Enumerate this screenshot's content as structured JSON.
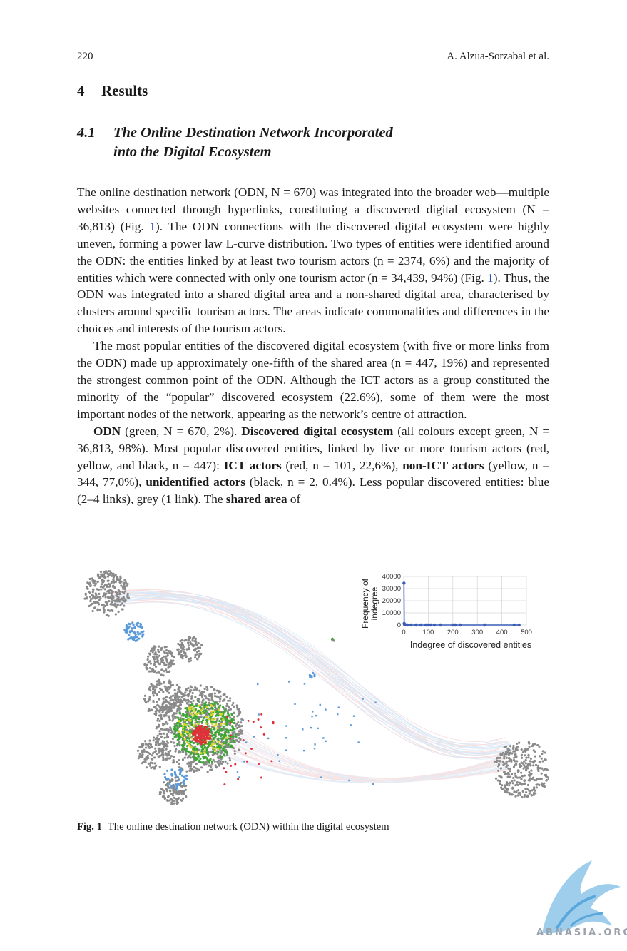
{
  "running_head": {
    "page_number": "220",
    "authors": "A. Alzua-Sorzabal et al."
  },
  "section": {
    "number": "4",
    "title": "Results"
  },
  "subsection": {
    "number": "4.1",
    "title_line1": "The Online Destination Network Incorporated",
    "title_line2": "into the Digital Ecosystem"
  },
  "paragraph1": {
    "a": "The online destination network (ODN, N = 670) was integrated into the broader web—multiple websites connected through hyperlinks, constituting a discovered digital ecosystem (N = 36,813) (Fig. ",
    "ref1": "1",
    "b": "). The ODN connections with the discovered digital ecosystem were highly uneven, forming a power law L-curve distribution. Two types of entities were identified around the ODN: the entities linked by at least two tourism actors (n = 2374, 6%) and the majority of entities which were connected with only one tourism actor (n = 34,439, 94%) (Fig. ",
    "ref2": "1",
    "c": "). Thus, the ODN was integrated into a shared digital area and a non-shared digital area, characterised by clusters around specific tourism actors. The areas indicate commonalities and differences in the choices and interests of the tourism actors."
  },
  "paragraph2": "The most popular entities of the discovered digital ecosystem (with five or more links from the ODN) made up approximately one-fifth of the shared area (n = 447, 19%) and represented the strongest common point of the ODN. Although the ICT actors as a group constituted the minority of the “popular” discovered ecosystem (22.6%), some of them were the most important nodes of the network, appearing as the network’s centre of attraction.",
  "paragraph3": {
    "b1": "ODN",
    "t1": " (green, N = 670, 2%). ",
    "b2": "Discovered digital ecosystem",
    "t2": " (all colours except green, N = 36,813, 98%). Most popular discovered entities, linked by five or more tourism actors (red, yellow, and black, n = 447): ",
    "b3": "ICT actors",
    "t3": " (red, n = 101, 22,6%), ",
    "b4": "non-ICT actors",
    "t4": " (yellow, n = 344, 77,0%), ",
    "b5": "unidentified actors",
    "t5": "   (black, n = 2, 0.4%). Less popular discovered entities: blue (2–4 links), grey (1 link). The ",
    "b6": "shared area",
    "t6": " of"
  },
  "figure": {
    "caption_label": "Fig. 1",
    "caption_text": "The online destination network (ODN) within the digital ecosystem",
    "colors": {
      "odn": "#3aa832",
      "ict": "#e0303a",
      "non_ict": "#d8d42a",
      "unidentified": "#000000",
      "less_popular": "#5a9ad8",
      "single_link": "#8a8a8a"
    }
  },
  "chart_data": {
    "type": "scatter",
    "xlabel": "Indegree of discovered entities",
    "ylabel": "Frequency of indegree",
    "xlim": [
      0,
      500
    ],
    "ylim": [
      0,
      40000
    ],
    "xticks": [
      0,
      100,
      200,
      300,
      400,
      500
    ],
    "yticks": [
      0,
      10000,
      20000,
      30000,
      40000
    ],
    "grid": true,
    "color": "#3a5db5",
    "points": [
      [
        1,
        34439
      ],
      [
        2,
        1200
      ],
      [
        3,
        500
      ],
      [
        4,
        300
      ],
      [
        5,
        160
      ],
      [
        8,
        80
      ],
      [
        15,
        30
      ],
      [
        30,
        10
      ],
      [
        50,
        5
      ],
      [
        70,
        3
      ],
      [
        90,
        2
      ],
      [
        100,
        1
      ],
      [
        110,
        1
      ],
      [
        125,
        1
      ],
      [
        150,
        1
      ],
      [
        200,
        1
      ],
      [
        210,
        1
      ],
      [
        230,
        1
      ],
      [
        330,
        1
      ],
      [
        450,
        1
      ],
      [
        470,
        1
      ]
    ]
  },
  "watermark": {
    "text": "ABNASIA.ORG"
  }
}
